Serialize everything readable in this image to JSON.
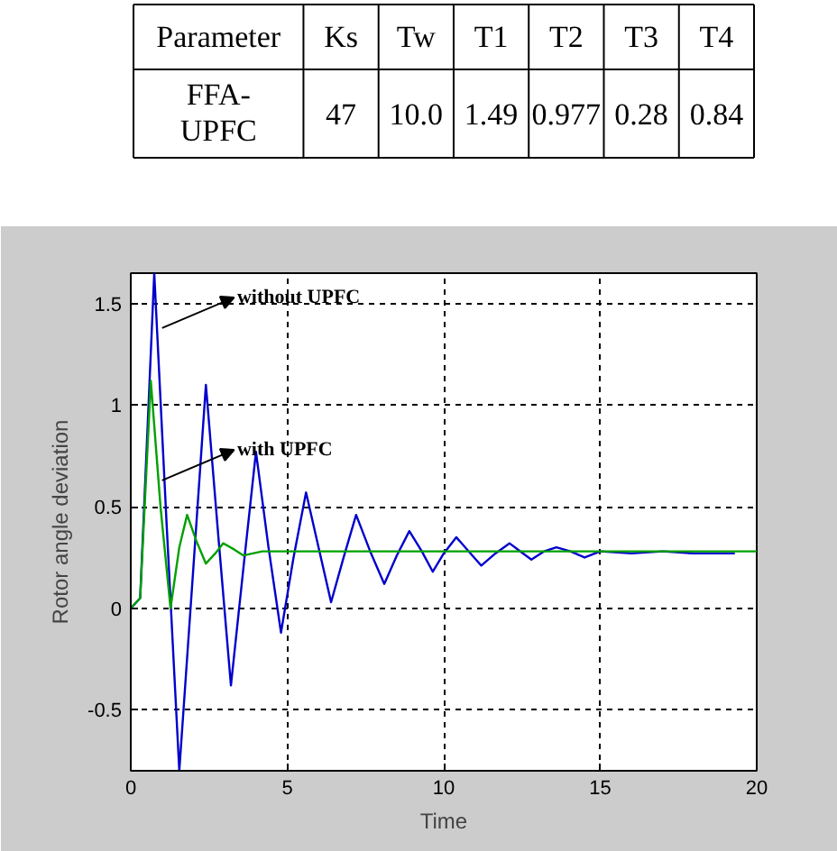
{
  "chart_data": [
    {
      "type": "other",
      "categories": [
        "Ks",
        "Tw",
        "T1",
        "T2",
        "T3",
        "T4"
      ],
      "annotations": [
        "Parameter",
        "FFA-UPFC",
        "47",
        "10.0",
        "1.49",
        "0.977",
        "0.28",
        "0.84"
      ]
    },
    {
      "type": "line",
      "xlabel": "Time",
      "ylabel": "Rotor angle deviation",
      "xlim": [
        0,
        20
      ],
      "ylim": [
        -0.8,
        1.65
      ],
      "xticks": [
        0,
        5,
        10,
        15,
        20
      ],
      "yticks": [
        -0.5,
        0,
        0.5,
        1,
        1.5
      ],
      "grid": true,
      "line_style": "solid",
      "series": [
        {
          "color": "#0000cc",
          "x": [
            0,
            0.3,
            0.75,
            1.15,
            1.55,
            2.0,
            2.4,
            2.8,
            3.2,
            3.6,
            4.0,
            4.4,
            4.8,
            5.2,
            5.6,
            6.0,
            6.4,
            6.8,
            7.2,
            7.65,
            8.1,
            8.5,
            8.9,
            9.3,
            9.65,
            10.0,
            10.4,
            10.8,
            11.2,
            11.65,
            12.1,
            12.45,
            12.8,
            13.2,
            13.6,
            14.05,
            14.5,
            15,
            16,
            17,
            18,
            19.3
          ],
          "values": [
            0,
            0.05,
            1.65,
            0.4,
            -0.8,
            0.2,
            1.1,
            0.35,
            -0.38,
            0.2,
            0.77,
            0.3,
            -0.12,
            0.25,
            0.57,
            0.3,
            0.03,
            0.25,
            0.46,
            0.28,
            0.12,
            0.26,
            0.38,
            0.28,
            0.18,
            0.27,
            0.35,
            0.28,
            0.21,
            0.27,
            0.32,
            0.28,
            0.24,
            0.28,
            0.3,
            0.28,
            0.25,
            0.28,
            0.27,
            0.28,
            0.27,
            0.27
          ]
        },
        {
          "color": "#00a000",
          "x": [
            0,
            0.3,
            0.64,
            0.95,
            1.27,
            1.55,
            1.8,
            2.1,
            2.4,
            2.7,
            2.95,
            3.3,
            3.6,
            4.2,
            5,
            20
          ],
          "values": [
            0,
            0.05,
            1.12,
            0.5,
            0,
            0.3,
            0.46,
            0.33,
            0.22,
            0.27,
            0.32,
            0.29,
            0.26,
            0.28,
            0.28,
            0.28
          ]
        }
      ],
      "annotations": [
        {
          "text": "without UPFC",
          "x": 1.0,
          "y": 1.38
        },
        {
          "text": "with UPFC",
          "x": 1.0,
          "y": 0.63
        }
      ]
    }
  ]
}
